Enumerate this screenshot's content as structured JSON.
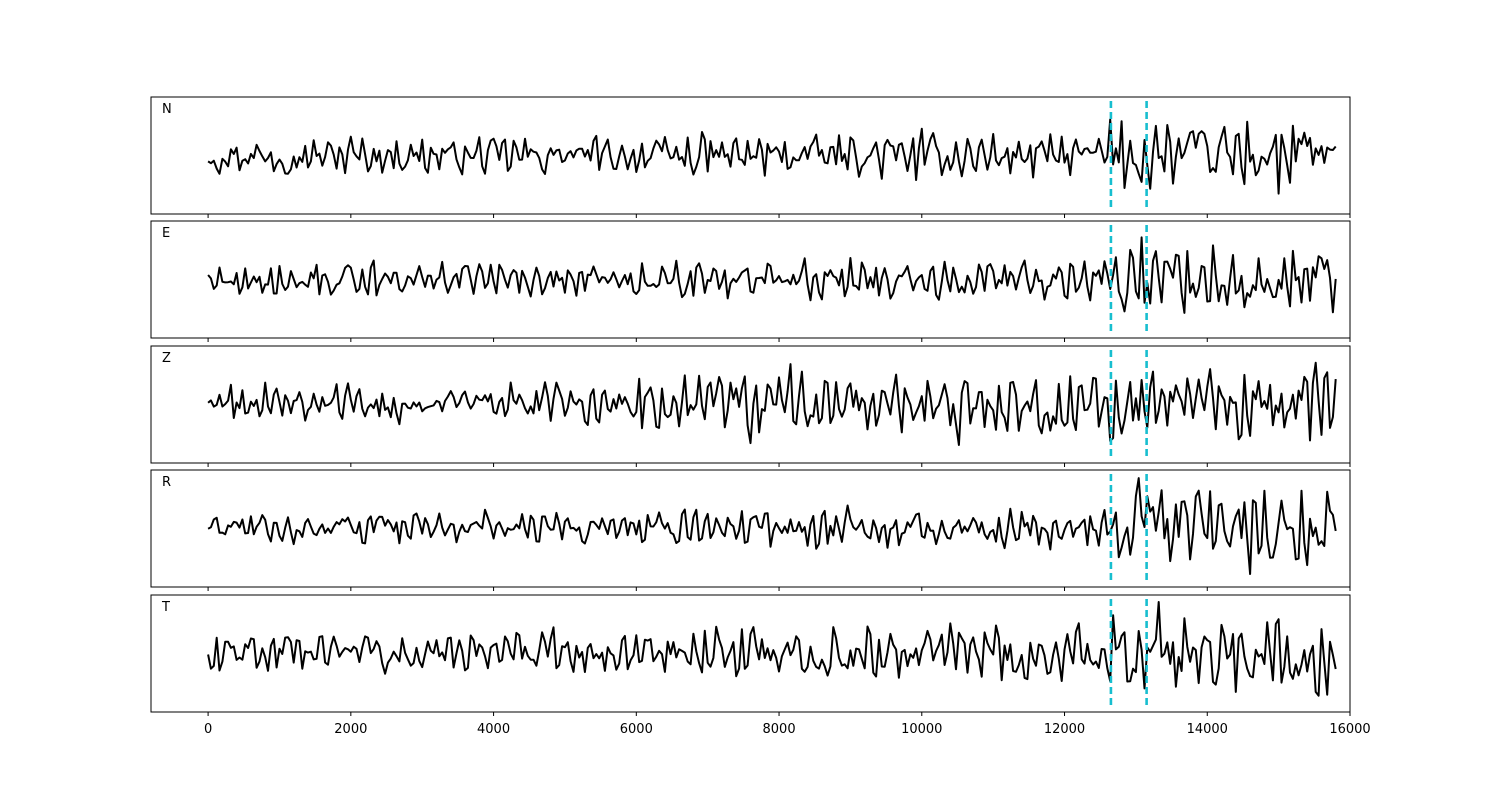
{
  "chart_data": {
    "type": "line",
    "title": "",
    "xlabel": "",
    "ylabel": "",
    "xlim": [
      -800,
      16000
    ],
    "x_ticks": [
      0,
      2000,
      4000,
      6000,
      8000,
      10000,
      12000,
      14000,
      16000
    ],
    "x_tick_labels": [
      "0",
      "2000",
      "4000",
      "6000",
      "8000",
      "10000",
      "12000",
      "14000",
      "16000"
    ],
    "x_start": 0,
    "x_end": 15800,
    "y_ticks_visible": false,
    "grid": false,
    "markers": [
      12650,
      13150
    ],
    "marker_color": "#17becf",
    "trace_color": "#000000",
    "panels": [
      {
        "name": "N",
        "segments": [
          {
            "from": 0,
            "to": 6500,
            "amp": 0.3
          },
          {
            "from": 6500,
            "to": 12600,
            "amp": 0.36
          },
          {
            "from": 12600,
            "to": 15800,
            "amp": 0.62
          }
        ]
      },
      {
        "name": "E",
        "segments": [
          {
            "from": 0,
            "to": 6000,
            "amp": 0.28
          },
          {
            "from": 6000,
            "to": 12600,
            "amp": 0.32
          },
          {
            "from": 12600,
            "to": 15800,
            "amp": 0.62
          }
        ]
      },
      {
        "name": "Z",
        "segments": [
          {
            "from": 0,
            "to": 6000,
            "amp": 0.3
          },
          {
            "from": 6000,
            "to": 12600,
            "amp": 0.5
          },
          {
            "from": 12600,
            "to": 15800,
            "amp": 0.55
          }
        ]
      },
      {
        "name": "R",
        "segments": [
          {
            "from": 0,
            "to": 6000,
            "amp": 0.25
          },
          {
            "from": 6000,
            "to": 12600,
            "amp": 0.32
          },
          {
            "from": 12600,
            "to": 15800,
            "amp": 0.68
          }
        ]
      },
      {
        "name": "T",
        "segments": [
          {
            "from": 0,
            "to": 6500,
            "amp": 0.34
          },
          {
            "from": 6500,
            "to": 12600,
            "amp": 0.42
          },
          {
            "from": 12600,
            "to": 15800,
            "amp": 0.7
          }
        ]
      }
    ]
  }
}
